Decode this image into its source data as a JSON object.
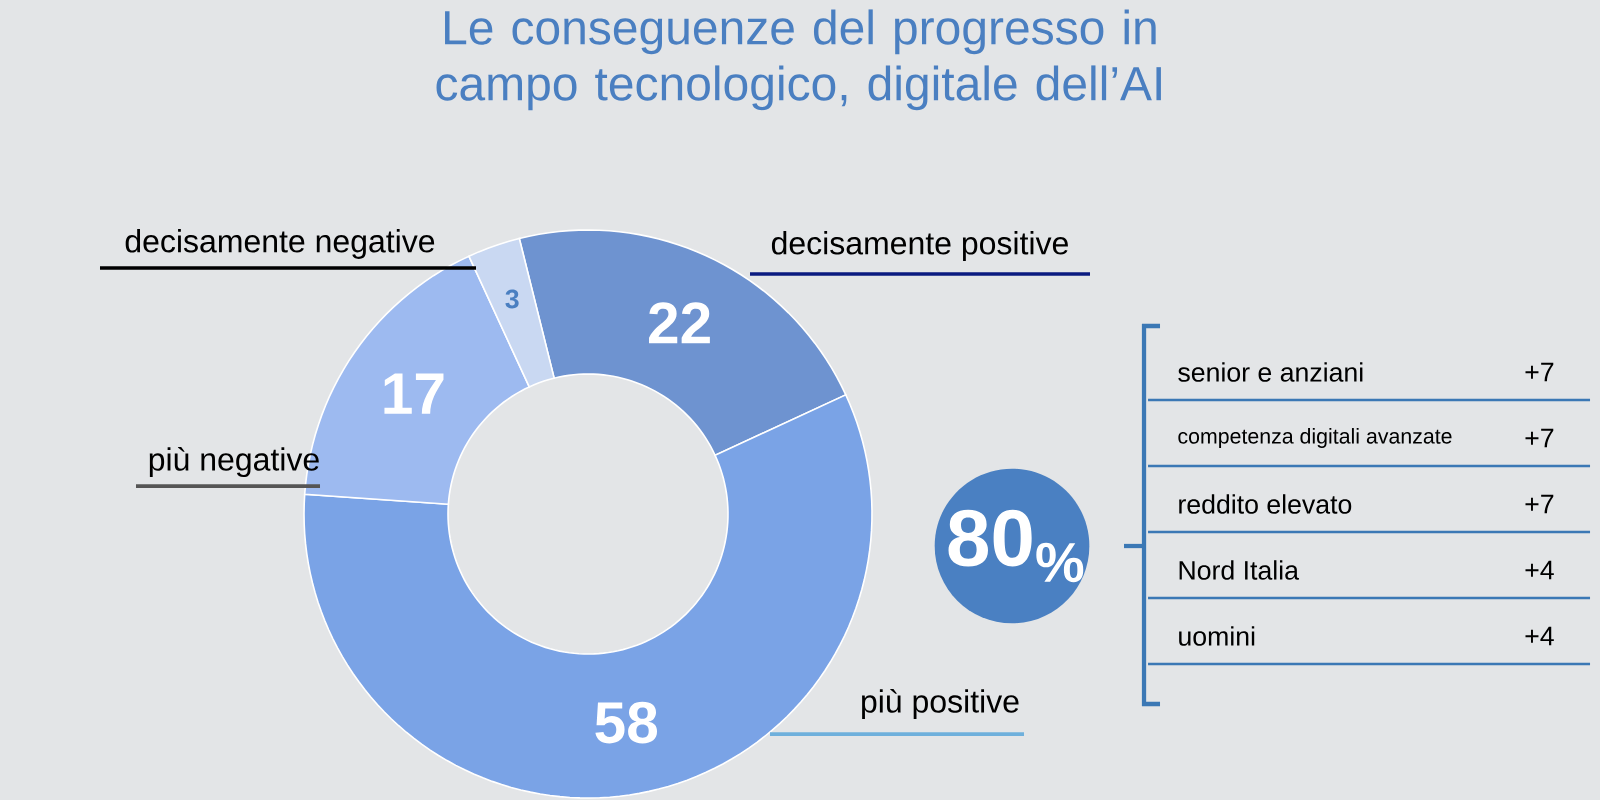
{
  "chart_data": [
    {
      "type": "donut",
      "title": "Le conseguenze del progresso in campo tecnologico, digitale dell’AI",
      "categories": [
        "decisamente positive",
        "più positive",
        "più negative",
        "decisamente negative"
      ],
      "values": [
        22,
        58,
        17,
        3
      ],
      "colors": [
        "#6e93d0",
        "#7aa3e6",
        "#9dbaf0",
        "#c9d8f2"
      ],
      "data_labels": true
    },
    {
      "type": "other",
      "annotations": [
        "80$_{%}$"
      ],
      "categories": [
        "senior e anziani",
        "competenza digitali avanzate",
        "reddito elevato",
        "Nord Italia",
        "uomini"
      ],
      "value_labels": [
        "+7",
        "+7",
        "+7",
        "+4",
        "+4"
      ]
    }
  ]
}
